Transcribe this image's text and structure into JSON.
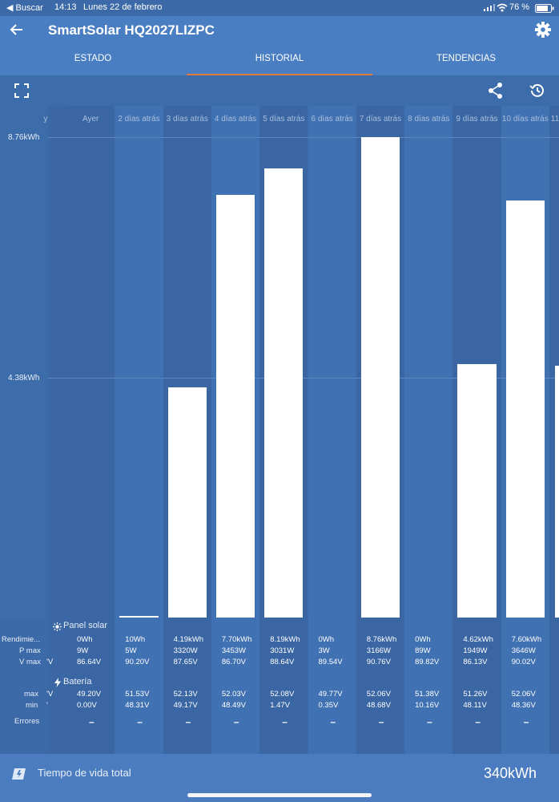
{
  "status": {
    "back_app": "◀ Buscar",
    "time": "14:13",
    "date": "Lunes 22 de febrero",
    "battery": "76 %"
  },
  "header": {
    "title": "SmartSolar HQ2027LIZPC"
  },
  "tabs": [
    {
      "label": "ESTADO",
      "active": false
    },
    {
      "label": "HISTORIAL",
      "active": true
    },
    {
      "label": "TENDENCIAS",
      "active": false
    }
  ],
  "toolbar": {
    "expand_icon": "expand-icon",
    "share_icon": "share-icon",
    "history_icon": "history-icon"
  },
  "chart_data": {
    "type": "bar",
    "categories": [
      "Ayer",
      "2 días atrás",
      "3 días atrás",
      "4 días atrás",
      "5 días atrás",
      "6 días atrás",
      "7 días atrás",
      "8 días atrás",
      "9 días atrás",
      "10 días atrás"
    ],
    "values": [
      0,
      0.01,
      4.19,
      7.7,
      8.19,
      0,
      8.76,
      0,
      4.62,
      7.6
    ],
    "y_ticks": [
      "8.76kWh",
      "4.38kWh"
    ],
    "ylim": [
      0,
      8.76
    ],
    "partial_left_header": "y",
    "partial_right_header": "11"
  },
  "panel_solar": {
    "label": "Panel solar",
    "row_labels": [
      "Rendimie...",
      "P max",
      "V max"
    ],
    "left_partial": [
      "",
      "",
      "'V"
    ],
    "rows": [
      [
        "0Wh",
        "10Wh",
        "4.19kWh",
        "7.70kWh",
        "8.19kWh",
        "0Wh",
        "8.76kWh",
        "0Wh",
        "4.62kWh",
        "7.60kWh"
      ],
      [
        "9W",
        "5W",
        "3320W",
        "3453W",
        "3031W",
        "3W",
        "3166W",
        "89W",
        "1949W",
        "3646W"
      ],
      [
        "86.64V",
        "90.20V",
        "87.65V",
        "86.70V",
        "88.64V",
        "89.54V",
        "90.76V",
        "89.82V",
        "86.13V",
        "90.02V"
      ]
    ]
  },
  "bateria": {
    "label": "Batería",
    "row_labels": [
      "max",
      "min"
    ],
    "left_partial": [
      "'V",
      "'"
    ],
    "rows": [
      [
        "49.20V",
        "51.53V",
        "52.13V",
        "52.03V",
        "52.08V",
        "49.77V",
        "52.06V",
        "51.38V",
        "51.26V",
        "52.06V"
      ],
      [
        "0.00V",
        "48.31V",
        "49.17V",
        "48.49V",
        "1.47V",
        "0.35V",
        "48.68V",
        "10.16V",
        "48.11V",
        "48.36V"
      ]
    ]
  },
  "errores": {
    "label": "Errores",
    "values": [
      "–",
      "–",
      "–",
      "–",
      "–",
      "–",
      "–",
      "–",
      "–",
      "–"
    ]
  },
  "footer": {
    "label": "Tiempo de vida total",
    "value": "340kWh",
    "icon": "solar-panel-icon"
  },
  "colors": {
    "background": "#3c6aa8",
    "appbar": "#4a7ec2",
    "bar": "#ffffff",
    "tab_indicator": "#e07b3a"
  }
}
